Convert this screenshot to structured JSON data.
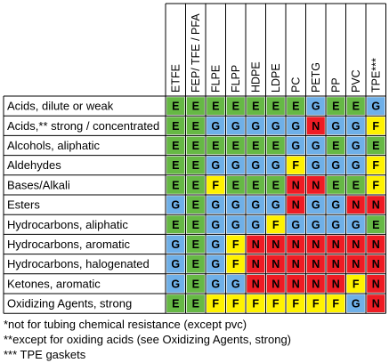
{
  "columns": [
    "ETFE",
    "FEP/ TFE / PFA",
    "FLPE",
    "FLPP",
    "HDPE",
    "LDPE",
    "PC",
    "PETG",
    "PP",
    "PVC",
    "TPE***"
  ],
  "rows": [
    {
      "label": "Acids, dilute or weak",
      "ratings": [
        "E",
        "E",
        "E",
        "E",
        "E",
        "E",
        "E",
        "G",
        "E",
        "E",
        "G"
      ]
    },
    {
      "label": "Acids,** strong / concentrated",
      "ratings": [
        "E",
        "E",
        "G",
        "G",
        "G",
        "G",
        "G",
        "N",
        "G",
        "G",
        "F"
      ]
    },
    {
      "label": "Alcohols, aliphatic",
      "ratings": [
        "E",
        "E",
        "E",
        "E",
        "E",
        "E",
        "G",
        "G",
        "E",
        "G",
        "E"
      ]
    },
    {
      "label": "Aldehydes",
      "ratings": [
        "E",
        "E",
        "G",
        "G",
        "G",
        "G",
        "F",
        "G",
        "G",
        "G",
        "F"
      ]
    },
    {
      "label": "Bases/Alkali",
      "ratings": [
        "E",
        "E",
        "F",
        "E",
        "E",
        "E",
        "N",
        "N",
        "E",
        "E",
        "F"
      ]
    },
    {
      "label": "Esters",
      "ratings": [
        "G",
        "E",
        "G",
        "G",
        "G",
        "G",
        "N",
        "G",
        "G",
        "N",
        "N"
      ]
    },
    {
      "label": "Hydrocarbons, aliphatic",
      "ratings": [
        "E",
        "E",
        "G",
        "G",
        "G",
        "F",
        "G",
        "G",
        "G",
        "G",
        "E"
      ]
    },
    {
      "label": "Hydrocarbons, aromatic",
      "ratings": [
        "G",
        "E",
        "G",
        "F",
        "N",
        "N",
        "N",
        "N",
        "N",
        "N",
        "N"
      ]
    },
    {
      "label": "Hydrocarbons, halogenated",
      "ratings": [
        "G",
        "E",
        "G",
        "F",
        "N",
        "N",
        "N",
        "N",
        "N",
        "N",
        "N"
      ]
    },
    {
      "label": "Ketones, aromatic",
      "ratings": [
        "G",
        "E",
        "G",
        "G",
        "N",
        "N",
        "N",
        "N",
        "N",
        "F",
        "N"
      ]
    },
    {
      "label": "Oxidizing Agents, strong",
      "ratings": [
        "E",
        "E",
        "F",
        "F",
        "F",
        "F",
        "F",
        "F",
        "F",
        "G",
        "N"
      ]
    }
  ],
  "rating_colors": {
    "E": "#66b845",
    "G": "#6fb0e8",
    "F": "#fff200",
    "N": "#ee1c24"
  },
  "footnotes": [
    "*not for tubing chemical resistance (except pvc)",
    "**except for oxiding acids (see Oxidizing Agents, strong)",
    "*** TPE gaskets"
  ]
}
